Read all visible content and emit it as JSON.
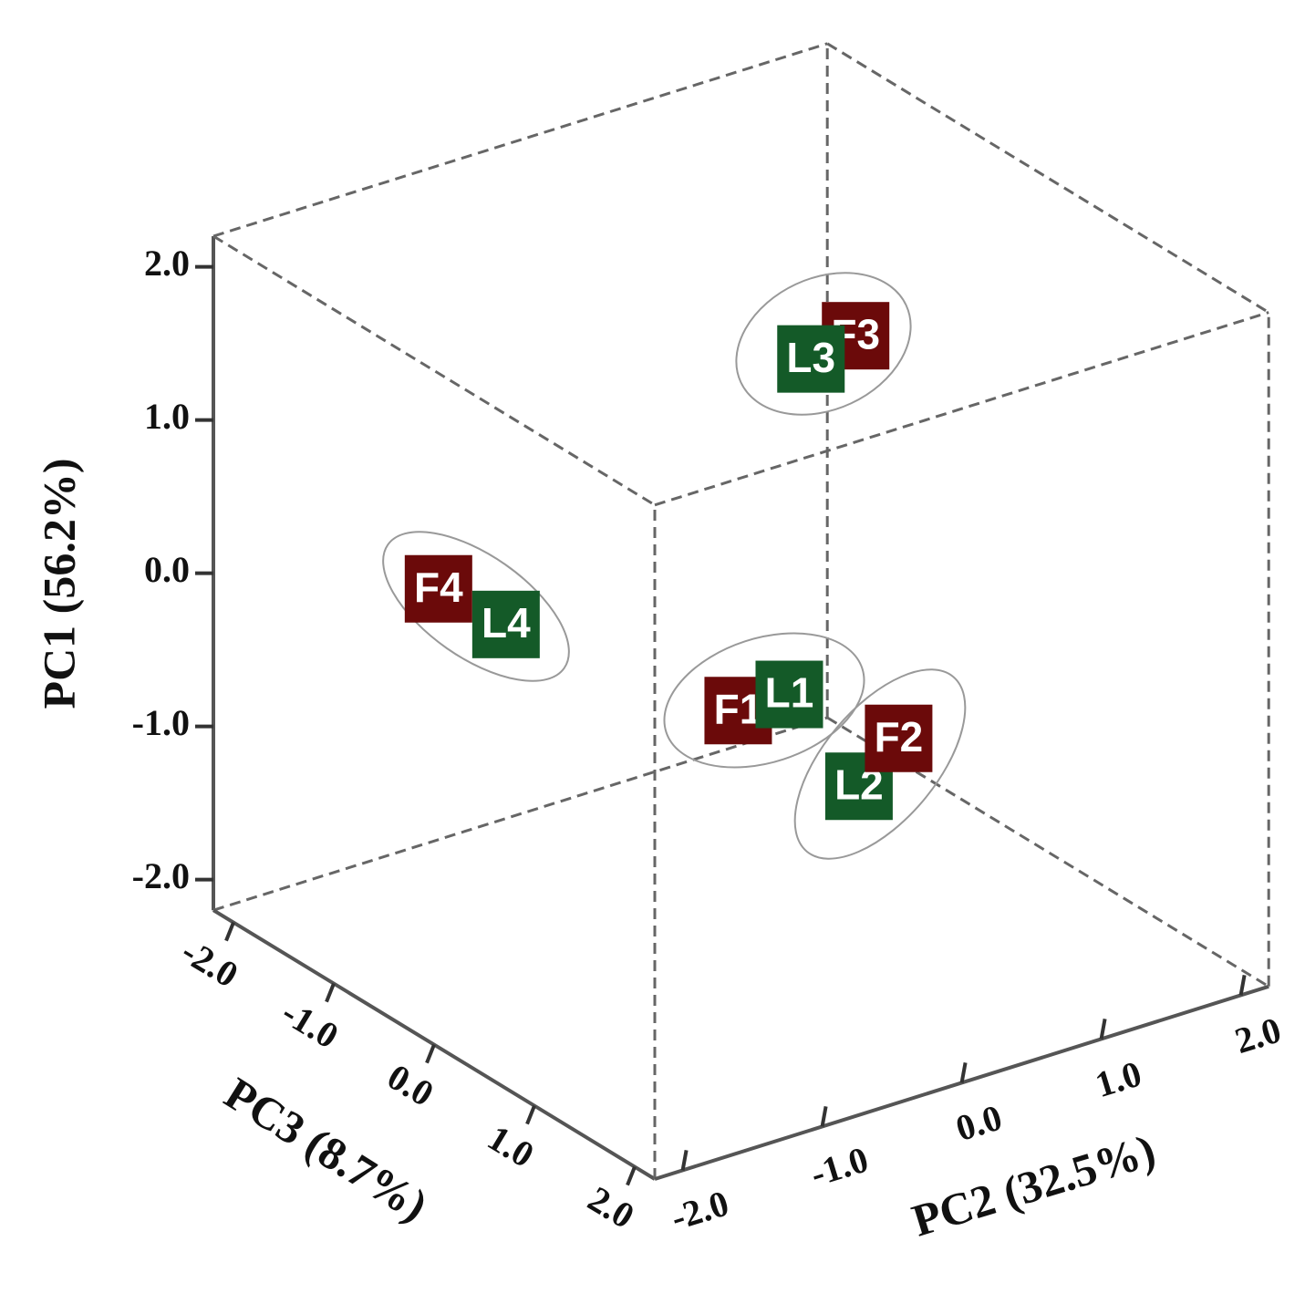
{
  "chart_data": {
    "type": "scatter3d",
    "axis_labels": {
      "pc1": "PC1 (56.2%)",
      "pc2": "PC2 (32.5%)",
      "pc3": "PC3 (8.7%)"
    },
    "pc1lim": [
      -2.2,
      2.2
    ],
    "pc2lim": [
      -2.2,
      2.2
    ],
    "pc3lim": [
      -2.2,
      2.2
    ],
    "pc1ticks": [
      {
        "value": -2,
        "label": "-2.0"
      },
      {
        "value": -1,
        "label": "-1.0"
      },
      {
        "value": 0,
        "label": "0.0"
      },
      {
        "value": 1,
        "label": "1.0"
      },
      {
        "value": 2,
        "label": "2.0"
      }
    ],
    "pc2ticks": [
      {
        "value": -2,
        "label": "-2.0"
      },
      {
        "value": -1,
        "label": "-1.0"
      },
      {
        "value": 0,
        "label": "0.0"
      },
      {
        "value": 1,
        "label": "1.0"
      },
      {
        "value": 2,
        "label": "2.0"
      }
    ],
    "pc3ticks": [
      {
        "value": -2,
        "label": "-2.0"
      },
      {
        "value": -1,
        "label": "-1.0"
      },
      {
        "value": 0,
        "label": "0.0"
      },
      {
        "value": 1,
        "label": "1.0"
      },
      {
        "value": 2,
        "label": "2.0"
      }
    ],
    "points": [
      {
        "label": "F1",
        "pc1": -0.34,
        "pc2": -0.38,
        "pc3": 0.5,
        "color": "#6b0a0a"
      },
      {
        "label": "L1",
        "pc1": -0.46,
        "pc2": 0.13,
        "pc3": 0.3,
        "color": "#145a28"
      },
      {
        "label": "L2",
        "pc1": -0.9,
        "pc2": 0.27,
        "pc3": 0.8,
        "color": "#145a28"
      },
      {
        "label": "F2",
        "pc1": -0.85,
        "pc2": 0.77,
        "pc3": 0.5,
        "color": "#6b0a0a"
      },
      {
        "label": "F3",
        "pc1": 0.96,
        "pc2": 1.54,
        "pc3": -1.0,
        "color": "#6b0a0a"
      },
      {
        "label": "L3",
        "pc1": 0.9,
        "pc2": 1.22,
        "pc3": -1.0,
        "color": "#145a28"
      },
      {
        "label": "F4",
        "pc1": -0.14,
        "pc2": -1.09,
        "pc3": -1.5,
        "color": "#6b0a0a"
      },
      {
        "label": "L4",
        "pc1": -0.39,
        "pc2": -0.75,
        "pc3": -1.3,
        "color": "#145a28"
      }
    ]
  }
}
